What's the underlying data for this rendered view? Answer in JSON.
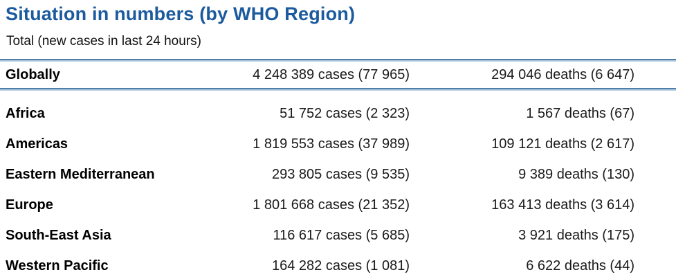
{
  "page": {
    "title": "Situation in numbers (by WHO Region)",
    "subtitle": "Total (new cases in last 24 hours)"
  },
  "colors": {
    "title_blue": "#1b5a9e",
    "rule_dark": "#4f7da9",
    "rule_light": "#b3cbdf"
  },
  "table": {
    "global_row": {
      "region": "Globally",
      "cases": "4 248 389 cases (77 965)",
      "deaths": "294 046 deaths (6 647)"
    },
    "rows": [
      {
        "region": "Africa",
        "cases": "51 752 cases (2 323)",
        "deaths": "1 567 deaths (67)"
      },
      {
        "region": "Americas",
        "cases": "1 819 553 cases (37 989)",
        "deaths": "109 121 deaths (2 617)"
      },
      {
        "region": "Eastern Mediterranean",
        "cases": "293 805 cases (9 535)",
        "deaths": "9 389 deaths (130)"
      },
      {
        "region": "Europe",
        "cases": "1 801 668 cases (21 352)",
        "deaths": "163 413 deaths (3 614)"
      },
      {
        "region": "South-East Asia",
        "cases": "116 617 cases (5 685)",
        "deaths": "3 921 deaths (175)"
      },
      {
        "region": "Western Pacific",
        "cases": "164 282 cases (1 081)",
        "deaths": "6 622 deaths (44)"
      }
    ]
  }
}
